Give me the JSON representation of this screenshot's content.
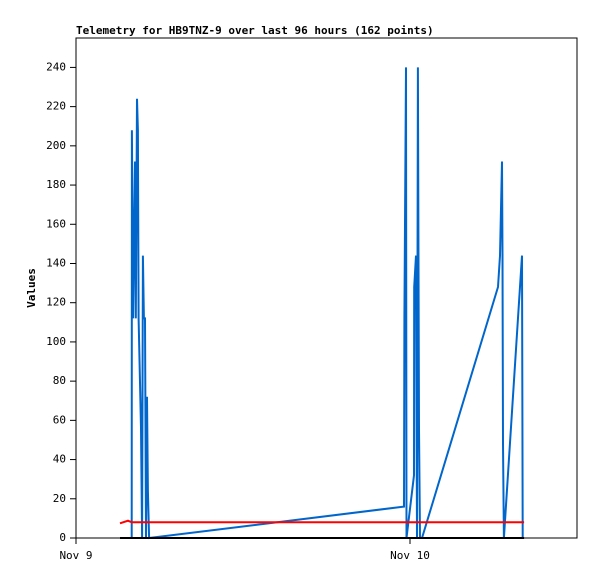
{
  "chart_data": {
    "type": "line",
    "title": "Telemetry for HB9TNZ-9 over last 96 hours (162 points)",
    "y_label": "Values",
    "xlim": [
      0,
      36
    ],
    "xticks": [
      {
        "value": 0,
        "label": "Nov 9"
      },
      {
        "value": 24,
        "label": "Nov 10"
      }
    ],
    "ylim": [
      0,
      255
    ],
    "yticks": [
      0,
      20,
      40,
      60,
      80,
      100,
      120,
      140,
      160,
      180,
      200,
      220,
      240
    ],
    "grid": false,
    "series": [
      {
        "color": "#0066cc",
        "x": [
          4.0,
          4.02,
          4.1,
          4.24,
          4.3,
          4.38,
          4.45,
          4.5,
          4.67,
          4.75,
          4.81,
          4.88,
          4.96,
          5.03,
          5.1,
          5.17,
          5.25,
          23.57,
          23.6,
          23.71,
          23.75,
          24.29,
          24.3,
          24.43,
          24.5,
          24.57,
          24.65,
          24.72,
          24.86,
          30.32,
          30.47,
          30.61,
          30.65,
          30.68,
          30.75,
          32.05,
          32.1
        ],
        "values": [
          0,
          208,
          112,
          192,
          112,
          224,
          208,
          112,
          56,
          0,
          144,
          112,
          112,
          0,
          72,
          24,
          0,
          16,
          112,
          240,
          0,
          32,
          128,
          144,
          0,
          240,
          56,
          0,
          0,
          128,
          144,
          192,
          144,
          48,
          0,
          144,
          0
        ]
      },
      {
        "color": "#ff0000",
        "x": [
          3.16,
          3.74,
          4.0,
          32.2
        ],
        "values": [
          7.5,
          8.8,
          8,
          8
        ]
      },
      {
        "color": "#000000",
        "x": [
          3.16,
          32.2
        ],
        "values": [
          0,
          0
        ]
      }
    ]
  }
}
